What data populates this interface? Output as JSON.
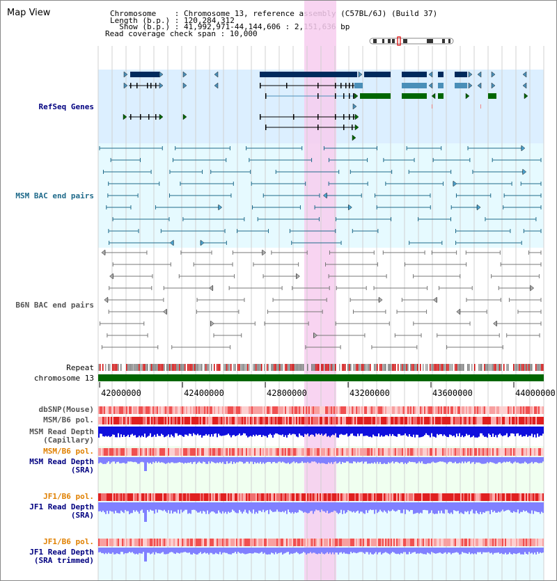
{
  "page": {
    "title": "Map View",
    "info": [
      {
        "label": "Chromosome   ",
        "value": "Chromosome 13, reference assembly (C57BL/6J) (Build 37)"
      },
      {
        "label": "Length (b.p.)",
        "value": "120,284,312"
      },
      {
        "label": "  Show (b.p.)",
        "value": "41,992,971-44,144,606 : 2,151,636 bp"
      },
      {
        "label": "Read coverage check span",
        "value": "10,000"
      }
    ]
  },
  "tracks": {
    "refseq_label": "RefSeq Genes",
    "msm_bac_label": "MSM BAC end pairs",
    "b6n_bac_label": "B6N BAC end pairs",
    "repeat_label": "Repeat",
    "chromosome_label": "chromosome 13",
    "dbsnp_label": "dbSNP(Mouse)",
    "msm_b6_pol_label": "MSM/B6 pol.",
    "msm_depth_cap_label": "MSM Read Depth",
    "msm_depth_cap_sub": "(Capillary)",
    "msm_b6_pol2_label": "MSM/B6 pol.",
    "msm_depth_sra_label": "MSM Read Depth",
    "msm_depth_sra_sub": "(SRA)",
    "jf1_b6_pol_label": "JF1/B6 pol.",
    "jf1_depth_label": "JF1 Read Depth",
    "jf1_depth_sub": "(SRA)",
    "jf1_b6_pol2_label": "JF1/B6 pol.",
    "jf1_depth_trim_label": "JF1 Read Depth",
    "jf1_depth_trim_sub": "(SRA trimmed)"
  },
  "axis": {
    "ticks": [
      "42000000",
      "42400000",
      "42800000",
      "43200000",
      "43600000",
      "44000000"
    ]
  },
  "colors": {
    "blue_label": "#000080",
    "orange_label": "#e08000",
    "gene_dark": "#002a5c",
    "gene_light": "#4a8fb8",
    "gene_green": "#006600",
    "bac_msm": "#1f6a8a",
    "bac_b6n": "#777777",
    "highlight": "#f7cdef",
    "chrom_green": "#006600",
    "depth_blue": "#1010dd",
    "depth_light": "#8080ff"
  }
}
